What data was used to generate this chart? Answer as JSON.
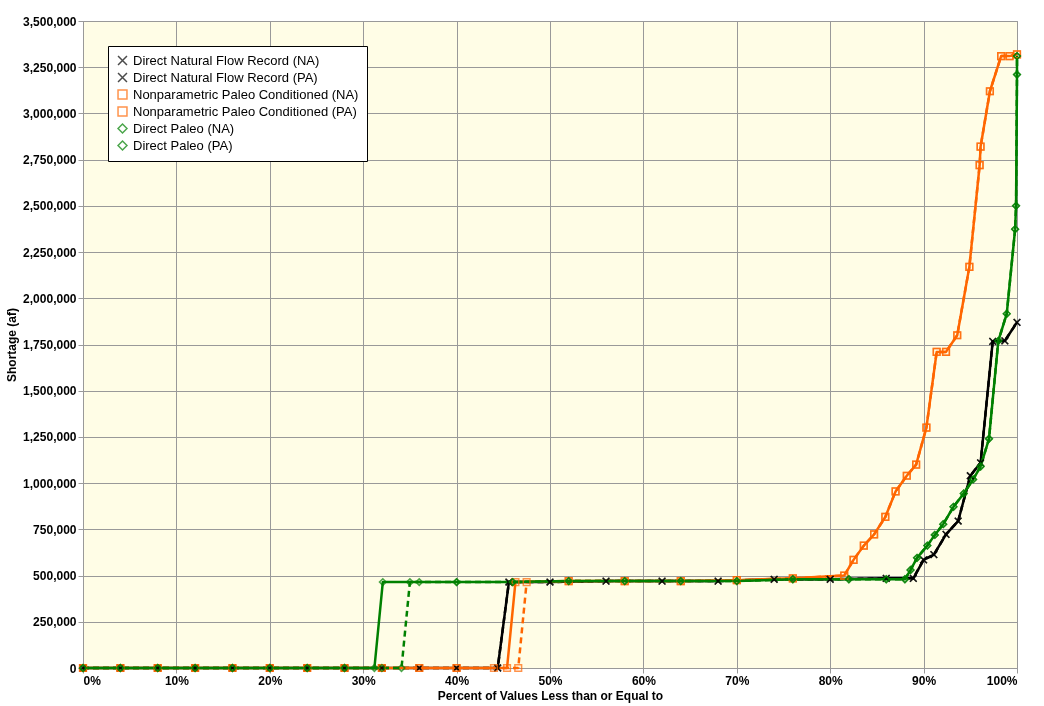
{
  "chart_data": {
    "type": "line",
    "xlabel": "Percent of Values Less than or Equal to",
    "ylabel": "Shortage (af)",
    "xlim": [
      0,
      100
    ],
    "xticks": [
      {
        "value": 0,
        "label": "0%"
      },
      {
        "value": 10,
        "label": "10%"
      },
      {
        "value": 20,
        "label": "20%"
      },
      {
        "value": 30,
        "label": "30%"
      },
      {
        "value": 40,
        "label": "40%"
      },
      {
        "value": 50,
        "label": "50%"
      },
      {
        "value": 60,
        "label": "60%"
      },
      {
        "value": 70,
        "label": "70%"
      },
      {
        "value": 80,
        "label": "80%"
      },
      {
        "value": 90,
        "label": "90%"
      },
      {
        "value": 100,
        "label": "100%"
      }
    ],
    "ylim": [
      0,
      3500000
    ],
    "yticks": [
      {
        "value": 0,
        "label": "0"
      },
      {
        "value": 250000,
        "label": "250,000"
      },
      {
        "value": 500000,
        "label": "500,000"
      },
      {
        "value": 750000,
        "label": "750,000"
      },
      {
        "value": 1000000,
        "label": "1,000,000"
      },
      {
        "value": 1250000,
        "label": "1,250,000"
      },
      {
        "value": 1500000,
        "label": "1,500,000"
      },
      {
        "value": 1750000,
        "label": "1,750,000"
      },
      {
        "value": 2000000,
        "label": "2,000,000"
      },
      {
        "value": 2250000,
        "label": "2,250,000"
      },
      {
        "value": 2500000,
        "label": "2,500,000"
      },
      {
        "value": 2750000,
        "label": "2,750,000"
      },
      {
        "value": 3000000,
        "label": "3,000,000"
      },
      {
        "value": 3250000,
        "label": "3,250,000"
      },
      {
        "value": 3500000,
        "label": "3,500,000"
      }
    ],
    "grid": true,
    "legend": "top left",
    "series": [
      {
        "name": "Direct Natural Flow Record (NA)",
        "color": "#000000",
        "marker": "cross",
        "line_style": "dashed",
        "x": [
          0,
          4,
          8,
          12,
          16,
          20,
          24,
          28,
          32,
          36,
          40,
          44.4,
          45.6,
          50,
          56,
          62,
          68,
          74,
          80,
          86,
          88.9,
          90,
          91.1,
          92.4,
          93.7,
          95,
          96.1,
          97.4,
          98.7,
          100
        ],
        "values": [
          0,
          0,
          0,
          0,
          0,
          0,
          0,
          0,
          0,
          0,
          0,
          0,
          465000,
          465000,
          470000,
          470000,
          470000,
          480000,
          480000,
          485000,
          485000,
          585000,
          613000,
          723000,
          795000,
          1040000,
          1110000,
          1767000,
          1770000,
          1870000
        ]
      },
      {
        "name": "Direct Natural Flow Record (PA)",
        "color": "#000000",
        "marker": "cross",
        "line_style": "solid",
        "x": [
          0,
          4,
          8,
          12,
          16,
          20,
          24,
          28,
          32,
          36,
          40,
          44.4,
          45.6,
          50,
          56,
          62,
          68,
          74,
          80,
          86,
          88.9,
          90,
          91.1,
          92.4,
          93.7,
          95,
          96.1,
          97.4,
          98.7,
          100
        ],
        "values": [
          0,
          0,
          0,
          0,
          0,
          0,
          0,
          0,
          0,
          0,
          0,
          0,
          465000,
          465000,
          470000,
          470000,
          470000,
          480000,
          480000,
          485000,
          485000,
          585000,
          613000,
          723000,
          795000,
          1040000,
          1110000,
          1767000,
          1770000,
          1870000
        ]
      },
      {
        "name": "Nonparametric Paleo Conditioned (NA)",
        "color": "#ff6600",
        "marker": "square",
        "line_style": "dashed",
        "x": [
          0,
          4,
          8,
          12,
          16,
          20,
          24,
          28,
          32,
          36,
          40,
          44,
          46.6,
          47.5,
          52,
          58,
          64,
          70,
          76,
          81.5,
          82.5,
          83.6,
          84.7,
          85.9,
          87,
          88.2,
          89.2,
          90.3,
          91.4,
          92.4,
          93.6,
          94.9,
          96,
          96.1,
          97.1,
          98.3,
          99.2,
          100
        ],
        "values": [
          0,
          0,
          0,
          0,
          0,
          0,
          0,
          0,
          0,
          0,
          0,
          0,
          0,
          465000,
          470000,
          470000,
          470000,
          475000,
          485000,
          500000,
          585000,
          662000,
          723000,
          817000,
          955000,
          1040000,
          1100000,
          1300000,
          1710000,
          1710000,
          1800000,
          2170000,
          2720000,
          2820000,
          3120000,
          3310000,
          3310000,
          3320000
        ]
      },
      {
        "name": "Nonparametric Paleo Conditioned (PA)",
        "color": "#ff6600",
        "marker": "square",
        "line_style": "solid",
        "x": [
          0,
          4,
          8,
          12,
          16,
          20,
          24,
          28,
          32,
          36,
          40,
          45.4,
          46.3,
          52,
          58,
          64,
          70,
          76,
          81.5,
          82.5,
          83.6,
          84.7,
          85.9,
          87,
          88.2,
          89.2,
          90.3,
          91.4,
          92.4,
          93.6,
          94.9,
          96,
          96.1,
          97.1,
          98.3,
          99.2,
          100
        ],
        "values": [
          0,
          0,
          0,
          0,
          0,
          0,
          0,
          0,
          0,
          0,
          0,
          0,
          465000,
          470000,
          470000,
          470000,
          475000,
          485000,
          500000,
          585000,
          662000,
          723000,
          817000,
          955000,
          1040000,
          1100000,
          1300000,
          1710000,
          1710000,
          1800000,
          2170000,
          2720000,
          2820000,
          3120000,
          3310000,
          3310000,
          3320000
        ]
      },
      {
        "name": "Direct Paleo (NA)",
        "color": "#008000",
        "marker": "diamond",
        "line_style": "dashed",
        "x": [
          0,
          4,
          8,
          12,
          16,
          20,
          24,
          28,
          32,
          34.1,
          35,
          40,
          46,
          52,
          58,
          64,
          70,
          76,
          82,
          86,
          88,
          88.6,
          89.3,
          90.4,
          91.2,
          92.1,
          93.2,
          94.3,
          95.3,
          96.1,
          97,
          98,
          98.9,
          99.8,
          99.9,
          100,
          100
        ],
        "values": [
          0,
          0,
          0,
          0,
          0,
          0,
          0,
          0,
          0,
          0,
          465000,
          465000,
          465000,
          470000,
          470000,
          470000,
          470000,
          480000,
          480000,
          480000,
          480000,
          530000,
          596000,
          662000,
          720000,
          778000,
          872000,
          944000,
          1020000,
          1090000,
          1240000,
          1770000,
          1916000,
          2374000,
          2500000,
          3210000,
          3310000
        ]
      },
      {
        "name": "Direct Paleo (PA)",
        "color": "#008000",
        "marker": "diamond",
        "line_style": "solid",
        "x": [
          0,
          4,
          8,
          12,
          16,
          20,
          24,
          28,
          31.2,
          32.1,
          36,
          40,
          46,
          52,
          58,
          64,
          70,
          76,
          82,
          86,
          88,
          88.6,
          89.3,
          90.4,
          91.2,
          92.1,
          93.2,
          94.3,
          95.3,
          96.1,
          97,
          98,
          98.9,
          99.8,
          99.9,
          100,
          100
        ],
        "values": [
          0,
          0,
          0,
          0,
          0,
          0,
          0,
          0,
          0,
          465000,
          465000,
          465000,
          465000,
          470000,
          470000,
          470000,
          470000,
          480000,
          480000,
          480000,
          480000,
          530000,
          596000,
          662000,
          720000,
          778000,
          872000,
          944000,
          1020000,
          1090000,
          1240000,
          1770000,
          1916000,
          2374000,
          2500000,
          3210000,
          3310000
        ]
      }
    ]
  }
}
